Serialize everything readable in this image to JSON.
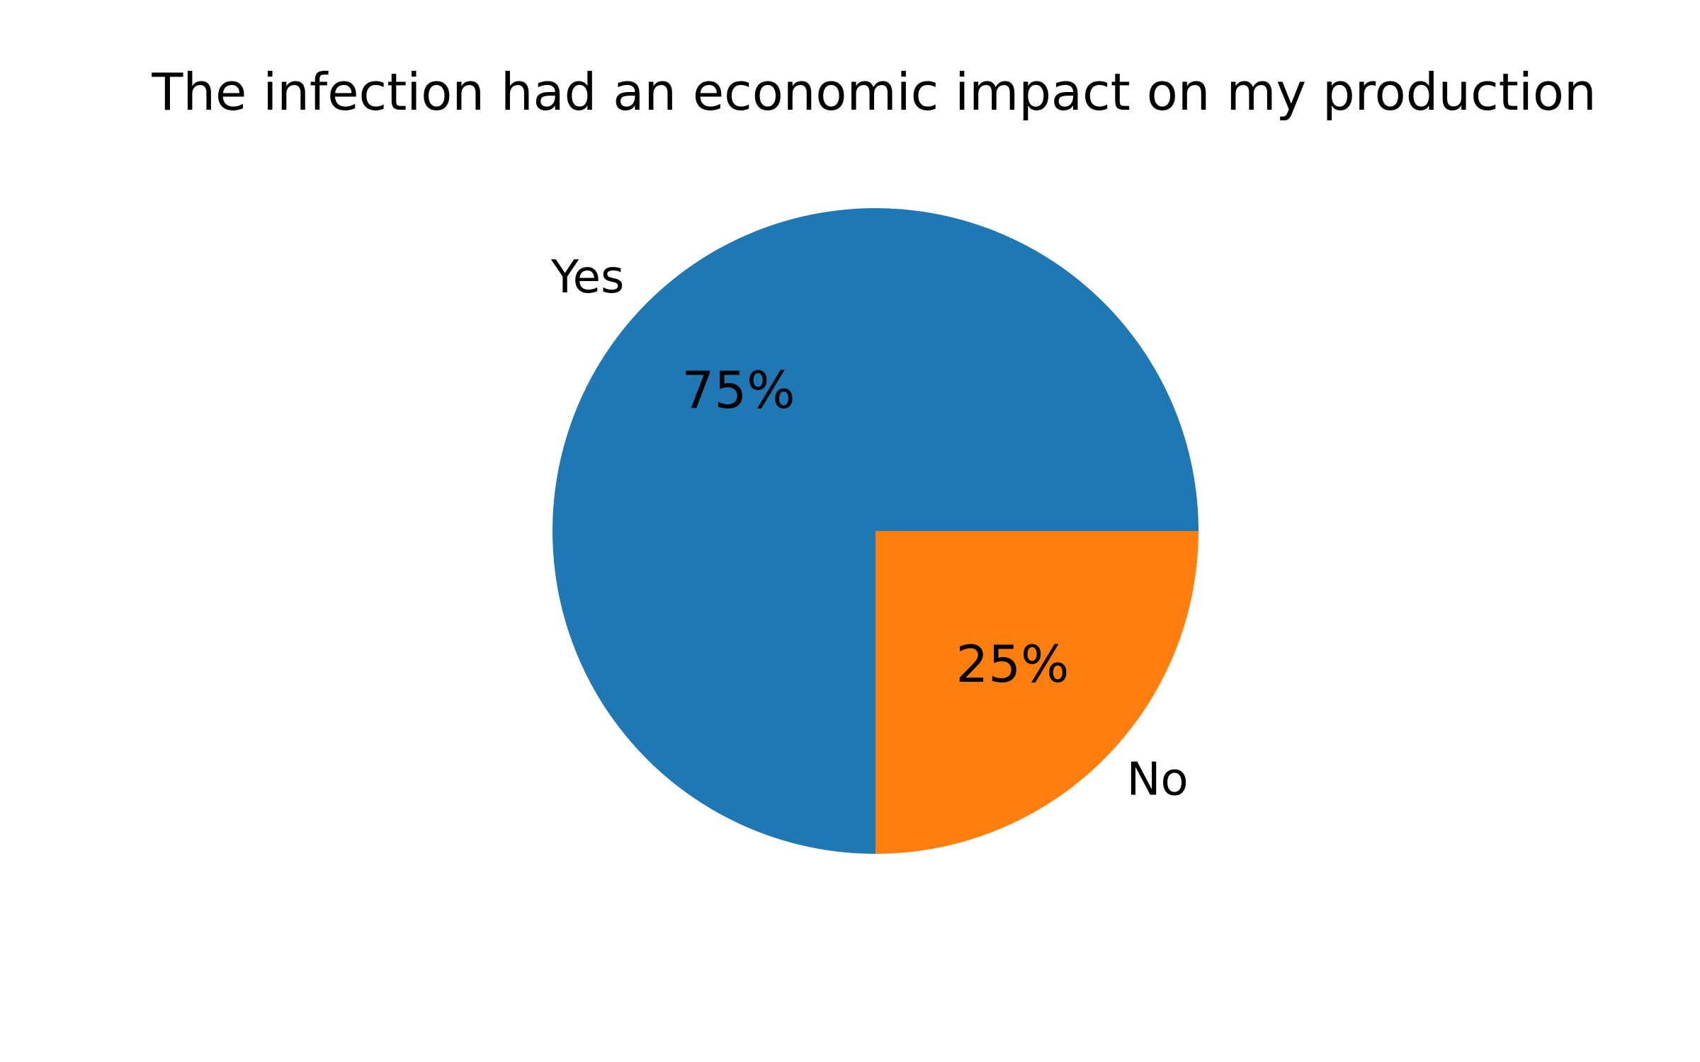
{
  "chart_data": {
    "type": "pie",
    "title": "The infection had an economic impact on my production",
    "categories": [
      "Yes",
      "No"
    ],
    "values": [
      75,
      25
    ],
    "percent_labels": [
      "75%",
      "25%"
    ],
    "colors": [
      "#1f77b4",
      "#ff7f0e"
    ],
    "start_angle_deg": 0,
    "direction": "counterclockwise",
    "legend": "none"
  }
}
